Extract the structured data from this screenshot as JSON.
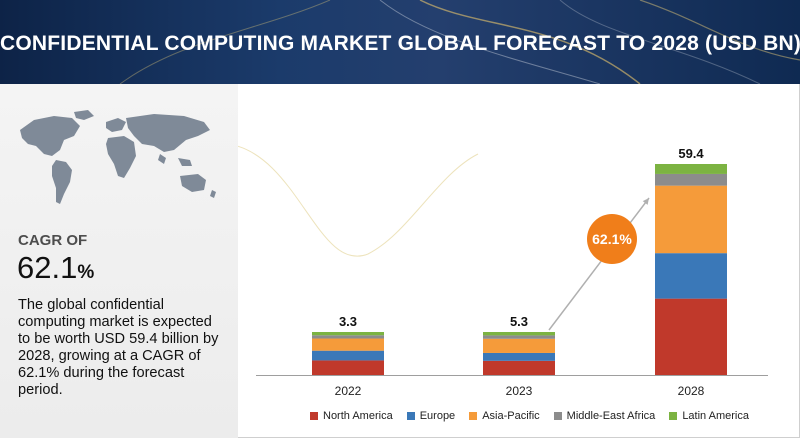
{
  "banner": {
    "title": "CONFIDENTIAL COMPUTING MARKET GLOBAL FORECAST TO 2028 (USD BN)"
  },
  "summary_panel": {
    "cagr_label": "CAGR OF",
    "cagr_value": "62.1",
    "cagr_unit": "%",
    "description": "The global confidential computing market is expected to be worth USD 59.4 billion by 2028, growing at a CAGR of 62.1% during the forecast period."
  },
  "chart_data": {
    "type": "bar",
    "stacked": true,
    "categories": [
      "2022",
      "2023",
      "2028"
    ],
    "totals": [
      "3.3",
      "5.3",
      "59.4"
    ],
    "cagr_badge": "62.1%",
    "series": [
      {
        "name": "North America",
        "color": "#c0392b",
        "values": [
          1.2,
          1.8,
          21.5
        ]
      },
      {
        "name": "Europe",
        "color": "#3a78b8",
        "values": [
          0.8,
          1.0,
          12.8
        ]
      },
      {
        "name": "Asia-Pacific",
        "color": "#f59b3a",
        "values": [
          1.0,
          1.8,
          19.0
        ]
      },
      {
        "name": "Middle-East Africa",
        "color": "#8c8c8c",
        "values": [
          0.15,
          0.3,
          3.3
        ]
      },
      {
        "name": "Latin America",
        "color": "#7cb342",
        "values": [
          0.15,
          0.4,
          2.8
        ]
      }
    ],
    "ylim": [
      0,
      59.4
    ],
    "grid": false,
    "legend_position": "bottom"
  }
}
